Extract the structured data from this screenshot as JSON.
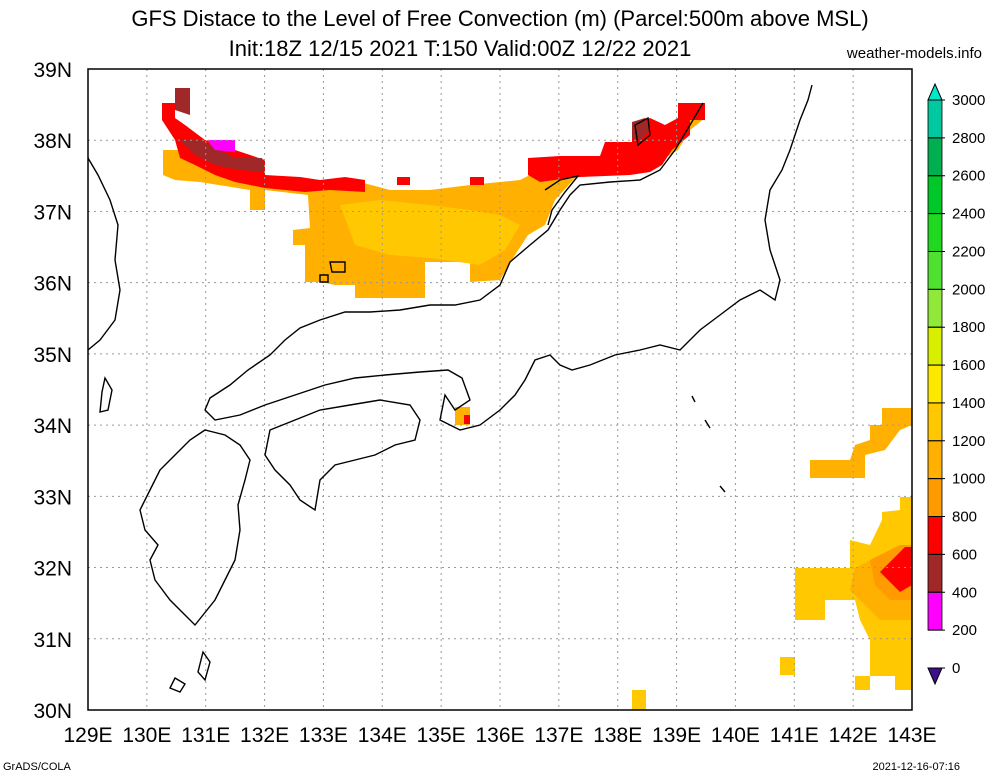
{
  "title_line1": "GFS Distace to the Level of Free Convection (m) (Parcel:500m above MSL)",
  "title_line2": "Init:18Z 12/15 2021 T:150 Valid:00Z 12/22 2021",
  "site": "weather-models.info",
  "footer_left": "GrADS/COLA",
  "footer_right": "2021-12-16-07:16",
  "lat_labels": [
    "39N",
    "38N",
    "37N",
    "36N",
    "35N",
    "34N",
    "33N",
    "32N",
    "31N",
    "30N"
  ],
  "lon_labels": [
    "129E",
    "130E",
    "131E",
    "132E",
    "133E",
    "134E",
    "135E",
    "136E",
    "137E",
    "138E",
    "139E",
    "140E",
    "141E",
    "142E",
    "143E"
  ],
  "colorbar": {
    "labels": [
      "3000",
      "2800",
      "2600",
      "2400",
      "2200",
      "2000",
      "1800",
      "1600",
      "1400",
      "1200",
      "1000",
      "800",
      "600",
      "400",
      "200",
      "0"
    ],
    "colors": [
      "#00e8c8",
      "#00c8a0",
      "#00b050",
      "#00c828",
      "#20d820",
      "#50e030",
      "#90e838",
      "#d8f000",
      "#ffe800",
      "#ffc800",
      "#ffb000",
      "#ff9a00",
      "#ff0000",
      "#a02828",
      "#ff00ff",
      "#40108a"
    ]
  }
}
